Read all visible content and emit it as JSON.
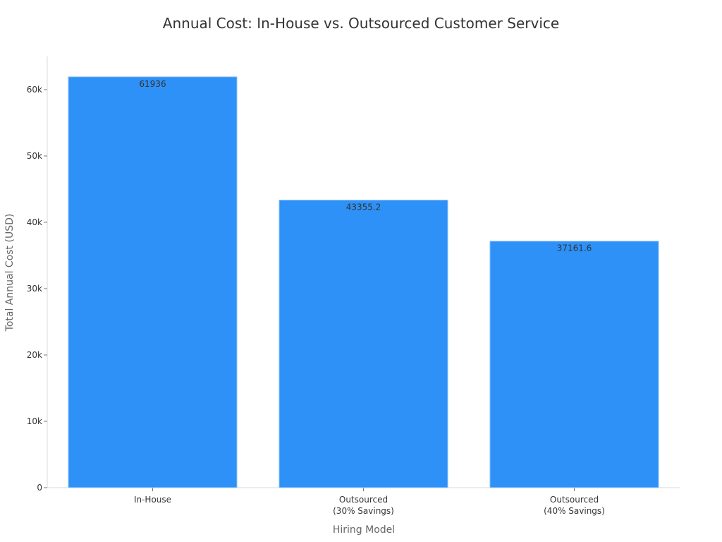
{
  "chart_data": {
    "type": "bar",
    "title": "Annual Cost: In-House vs. Outsourced Customer Service",
    "xlabel": "Hiring Model",
    "ylabel": "Total Annual Cost (USD)",
    "categories": [
      [
        "In-House"
      ],
      [
        "Outsourced",
        "(30% Savings)"
      ],
      [
        "Outsourced",
        "(40% Savings)"
      ]
    ],
    "values": [
      61936,
      43355.2,
      37161.6
    ],
    "data_labels": [
      "61936",
      "43355.2",
      "37161.6"
    ],
    "ylim": [
      0,
      65000
    ],
    "yticks": [
      0,
      10000,
      20000,
      30000,
      40000,
      50000,
      60000
    ],
    "ytick_labels": [
      "0",
      "10k",
      "20k",
      "30k",
      "40k",
      "50k",
      "60k"
    ],
    "bar_color": "#2E91F8",
    "grid": false,
    "legend": "none"
  }
}
